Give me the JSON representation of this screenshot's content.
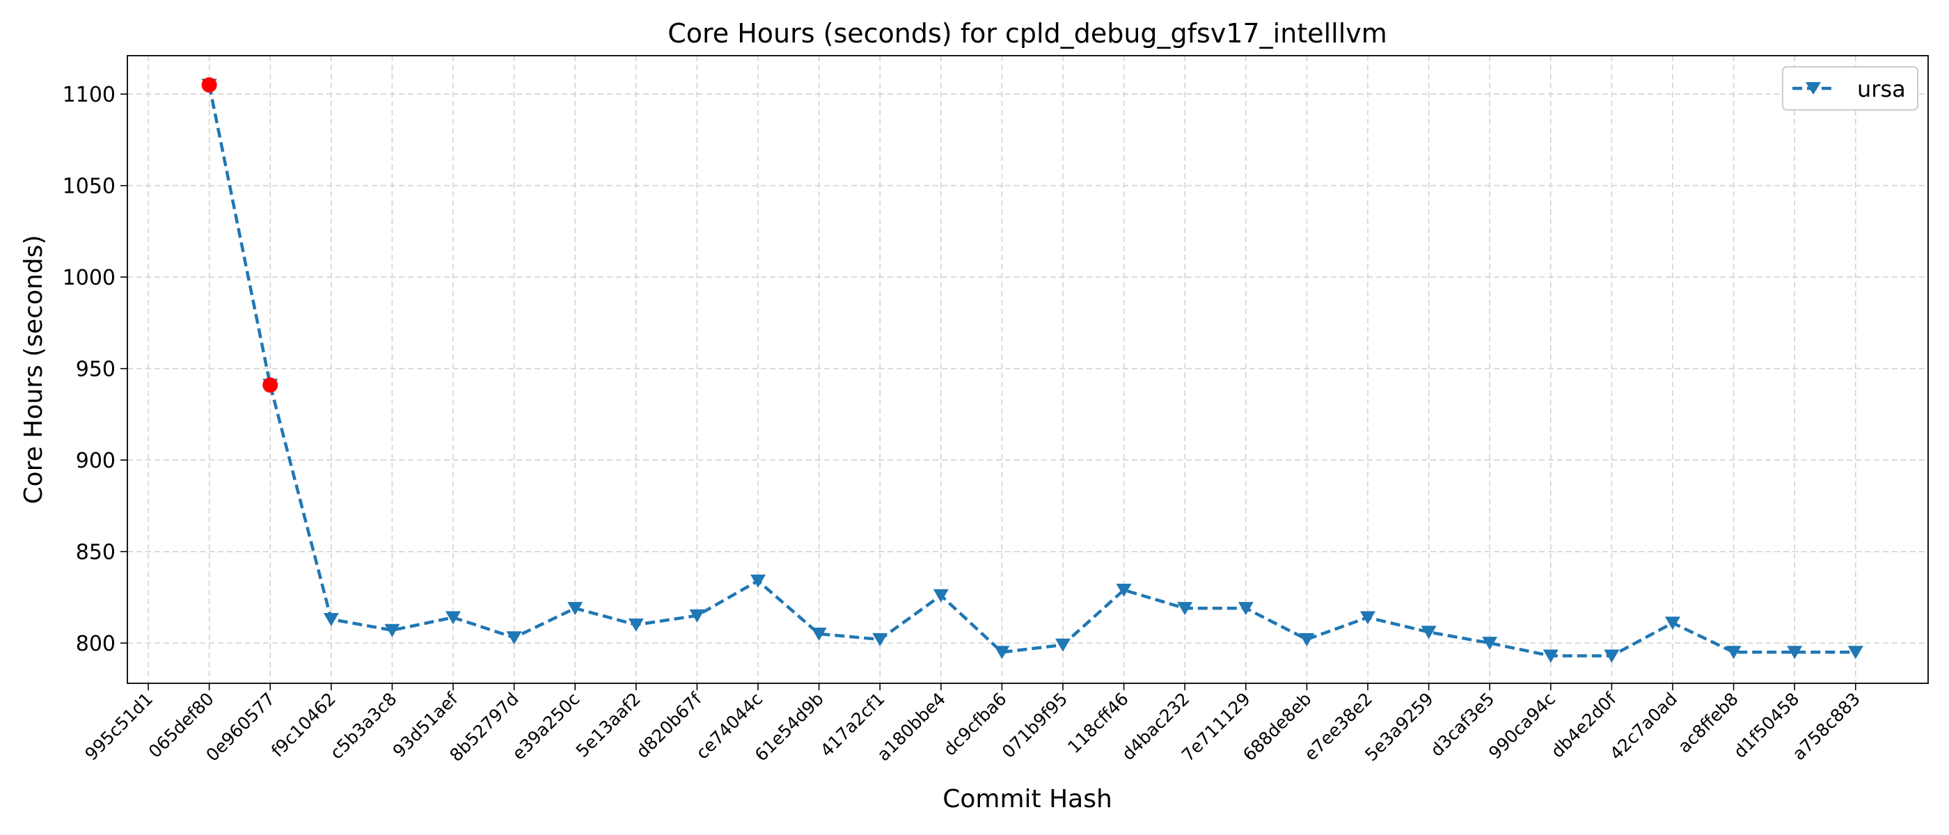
{
  "chart_data": {
    "type": "line",
    "title": "Core Hours (seconds) for cpld_debug_gfsv17_intelllvm",
    "xlabel": "Commit Hash",
    "ylabel": "Core Hours (seconds)",
    "categories": [
      "995c51d1",
      "065def80",
      "0e960577",
      "f9c10462",
      "c5b3a3c8",
      "93d51aef",
      "8b52797d",
      "e39a250c",
      "5e13aaf2",
      "d820b67f",
      "ce74044c",
      "61e54d9b",
      "417a2cf1",
      "a180bbe4",
      "dc9cfba6",
      "071b9f95",
      "118cff46",
      "d4bac232",
      "7e711129",
      "688de8eb",
      "e7ee38e2",
      "5e3a9259",
      "d3caf3e5",
      "990ca94c",
      "db4e2d0f",
      "42c7a0ad",
      "ac8ffeb8",
      "d1f50458",
      "a758c883"
    ],
    "yticks": [
      800,
      850,
      900,
      950,
      1000,
      1050,
      1100
    ],
    "ylim": [
      778,
      1121
    ],
    "grid": true,
    "legend_position": "top-right",
    "series": [
      {
        "name": "ursa",
        "color": "#1f77b4",
        "line_style": "dashed",
        "marker": "triangle-down",
        "values": [
          null,
          1105,
          941,
          813,
          807,
          814,
          803,
          819,
          810,
          815,
          834,
          805,
          802,
          826,
          795,
          799,
          829,
          819,
          819,
          802,
          814,
          806,
          800,
          793,
          793,
          811,
          795,
          795,
          795
        ]
      }
    ],
    "highlighted_points": [
      {
        "category": "065def80",
        "value": 1105,
        "color": "#ff0000"
      },
      {
        "category": "0e960577",
        "value": 941,
        "color": "#ff0000"
      }
    ]
  }
}
